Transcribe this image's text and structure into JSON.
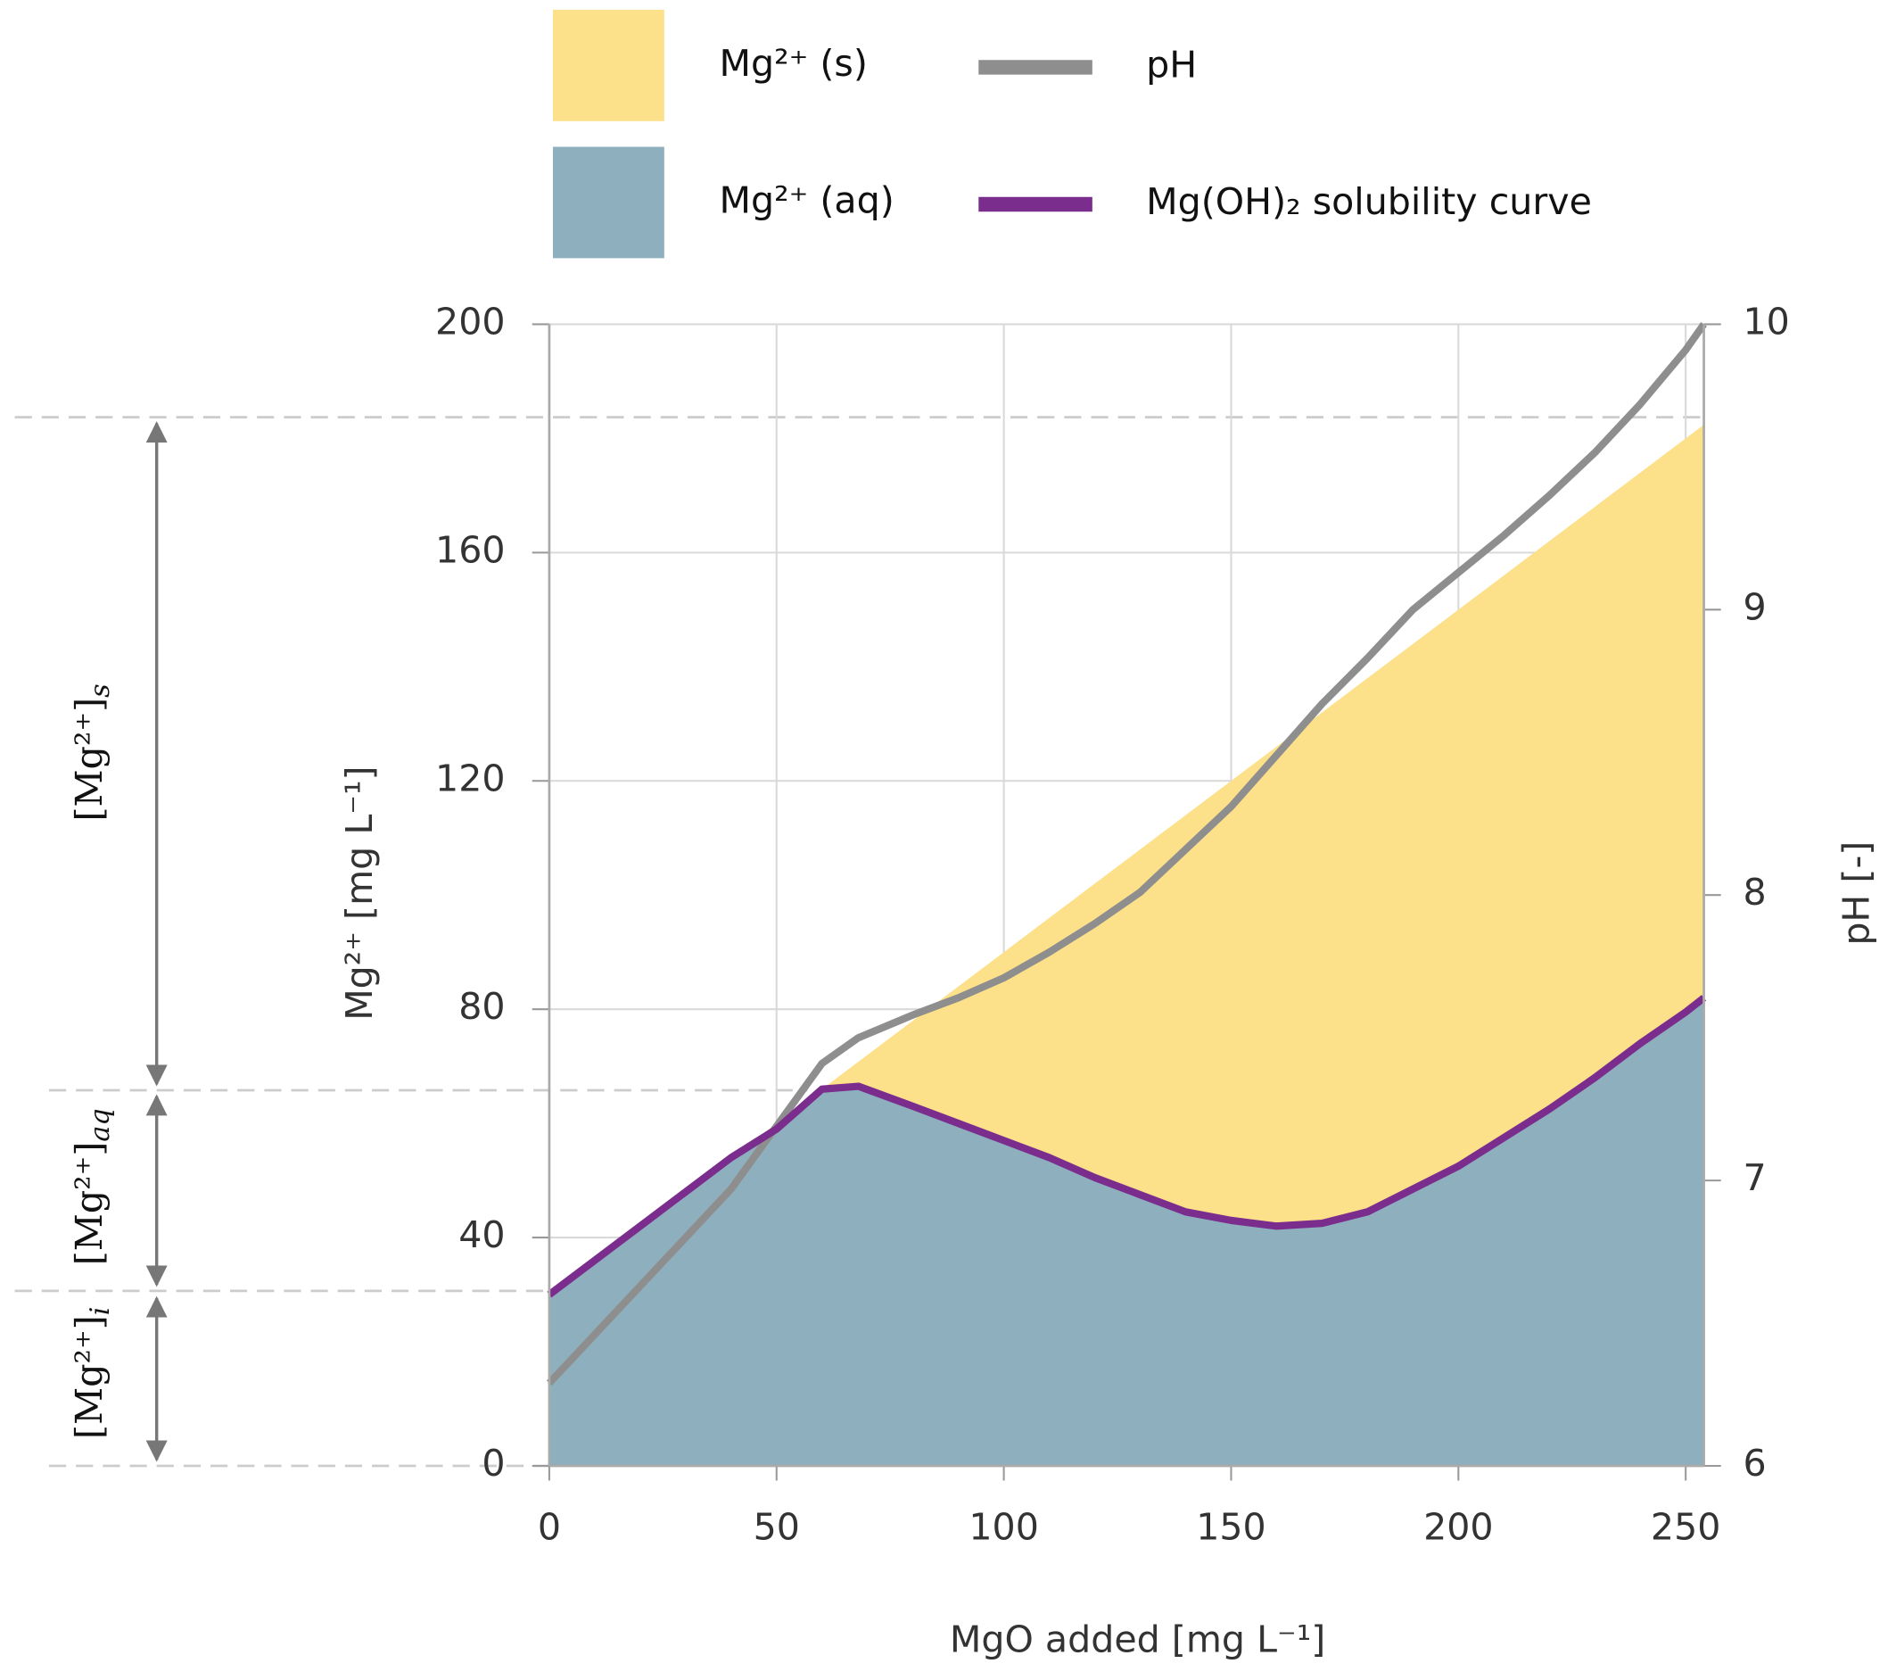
{
  "chart_data": {
    "type": "area",
    "x_label": "MgO added [mg L⁻¹]",
    "y_label": "Mg²⁺ [mg L⁻¹]",
    "y2_label": "pH [-]",
    "x": [
      0,
      10,
      20,
      30,
      40,
      50,
      60,
      68,
      80,
      90,
      100,
      110,
      120,
      130,
      140,
      150,
      160,
      170,
      180,
      190,
      200,
      210,
      220,
      230,
      240,
      250,
      254
    ],
    "series": [
      {
        "name": "Mg²⁺ (aq)",
        "color": "#8eafbd",
        "kind": "area",
        "values": [
          30,
          36,
          42,
          48,
          54,
          59,
          66,
          66.5,
          63,
          60,
          57,
          54,
          50.5,
          47.5,
          44.5,
          43,
          42,
          42.5,
          44.5,
          48.5,
          52.5,
          57.5,
          62.5,
          68,
          74,
          79.5,
          82
        ]
      },
      {
        "name": "Mg²⁺ (s)",
        "color": "#fde08a",
        "kind": "area",
        "values": [
          0,
          0,
          0,
          0,
          0,
          1,
          0,
          4.3,
          15,
          24,
          33,
          42,
          51.5,
          60.5,
          69.5,
          77,
          84,
          89.5,
          93.5,
          95.5,
          97.5,
          98.5,
          99.5,
          100,
          100,
          100.5,
          100.4
        ]
      },
      {
        "name": "pH",
        "color": "#8e8e8e",
        "kind": "line",
        "axis": "y2",
        "values": [
          6.29,
          6.46,
          6.63,
          6.8,
          6.97,
          7.19,
          7.41,
          7.5,
          7.58,
          7.64,
          7.71,
          7.8,
          7.9,
          8.01,
          8.16,
          8.31,
          8.49,
          8.67,
          8.83,
          9.0,
          9.13,
          9.26,
          9.4,
          9.55,
          9.72,
          9.91,
          10.0
        ]
      },
      {
        "name": "Mg(OH)₂ solubility curve",
        "color": "#7b2d8e",
        "kind": "line",
        "values": [
          30,
          36,
          42,
          48,
          54,
          59,
          66,
          66.5,
          63,
          60,
          57,
          54,
          50.5,
          47.5,
          44.5,
          43,
          42,
          42.5,
          44.5,
          48.5,
          52.5,
          57.5,
          62.5,
          68,
          74,
          79.5,
          82
        ]
      }
    ],
    "xlim": [
      0,
      254
    ],
    "xticks": [
      0,
      50,
      100,
      150,
      200,
      250
    ],
    "ylim": [
      0,
      200
    ],
    "yticks": [
      0,
      40,
      80,
      120,
      160,
      200
    ],
    "y2lim": [
      6,
      10
    ],
    "y2ticks": [
      6,
      7,
      8,
      9,
      10
    ],
    "grid": true,
    "annotations": [
      {
        "text": "[Mg²⁺]",
        "subscript": "s"
      },
      {
        "text": "[Mg²⁺]",
        "subscript": "aq"
      },
      {
        "text": "[Mg²⁺]",
        "subscript": "i"
      }
    ]
  }
}
